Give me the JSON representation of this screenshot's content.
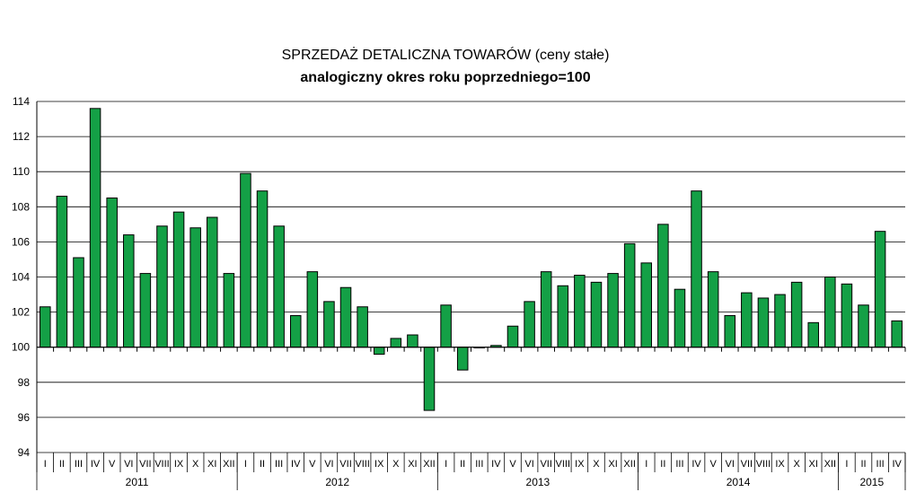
{
  "chart_data": {
    "type": "bar",
    "title": "SPRZEDAŻ DETALICZNA TOWARÓW  (ceny stałe)",
    "subtitle": "analogiczny okres roku poprzedniego=100",
    "xlabel": "",
    "ylabel": "",
    "ylim": [
      94,
      114
    ],
    "ytick_step": 2,
    "baseline": 100,
    "grid": "horizontal",
    "bar_color": "#14a046",
    "categories": [
      "I",
      "II",
      "III",
      "IV",
      "V",
      "VI",
      "VII",
      "VIII",
      "IX",
      "X",
      "XI",
      "XII",
      "I",
      "II",
      "III",
      "IV",
      "V",
      "VI",
      "VII",
      "VIII",
      "IX",
      "X",
      "XI",
      "XII",
      "I",
      "II",
      "III",
      "IV",
      "V",
      "VI",
      "VII",
      "VIII",
      "IX",
      "X",
      "XI",
      "XII",
      "I",
      "II",
      "III",
      "IV",
      "V",
      "VI",
      "VII",
      "VIII",
      "IX",
      "X",
      "XI",
      "XII",
      "I",
      "II",
      "III",
      "IV"
    ],
    "years": [
      {
        "label": "2011",
        "count": 12
      },
      {
        "label": "2012",
        "count": 12
      },
      {
        "label": "2013",
        "count": 12
      },
      {
        "label": "2014",
        "count": 12
      },
      {
        "label": "2015",
        "count": 4
      }
    ],
    "values": [
      102.3,
      108.6,
      105.1,
      113.6,
      108.5,
      106.4,
      104.2,
      106.9,
      107.7,
      106.8,
      107.4,
      104.2,
      109.9,
      108.9,
      106.9,
      101.8,
      104.3,
      102.6,
      103.4,
      102.3,
      99.6,
      100.5,
      100.7,
      96.4,
      102.4,
      98.7,
      100.0,
      100.1,
      101.2,
      102.6,
      104.3,
      103.5,
      104.1,
      103.7,
      104.2,
      105.9,
      104.8,
      107.0,
      103.3,
      108.9,
      104.3,
      101.8,
      103.1,
      102.8,
      103.0,
      103.7,
      101.4,
      104.0,
      103.6,
      102.4,
      106.6,
      101.5
    ]
  }
}
